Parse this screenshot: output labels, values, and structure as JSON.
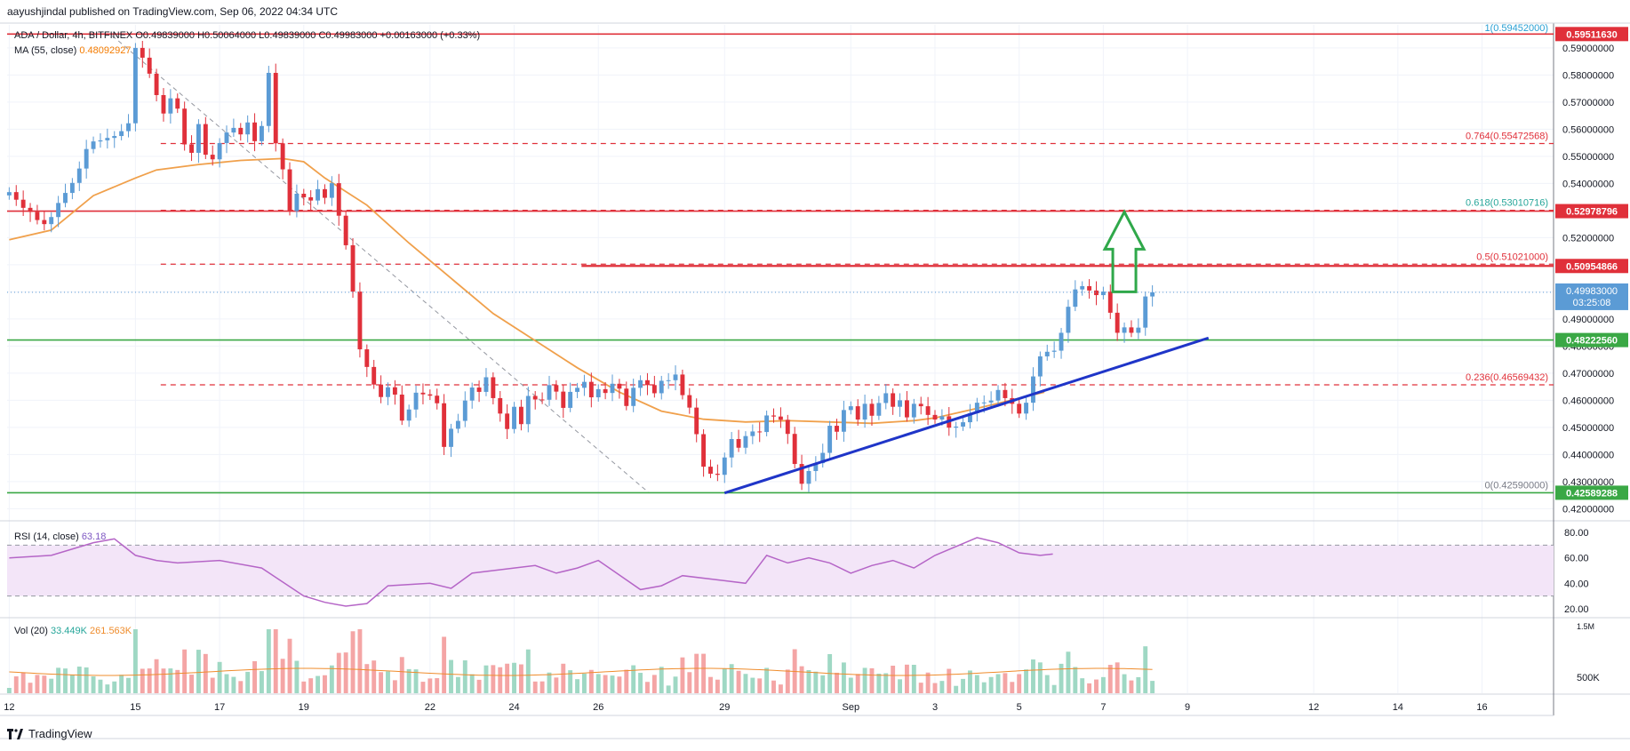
{
  "header": {
    "published_by": "aayushjindal published on TradingView.com, Sep 06, 2022 04:34 UTC"
  },
  "brand": {
    "name": "TradingView",
    "icon": "tradingview-logo-icon"
  },
  "legend": {
    "symbol": "ADA / Dollar, 4h, BITFINEX",
    "ohlc": "O0.49839000 H0.50064000 L0.49839000 C0.49983000 +0.00163000 (+0.33%)",
    "ma_label": "MA (55, close)",
    "ma_value": "0.48092927",
    "rsi_label": "RSI (14, close)",
    "rsi_value": "63.18",
    "vol_label": "Vol (20)",
    "vol_value": "33.449K",
    "vol_ma_value": "261.563K"
  },
  "colors": {
    "up": "#5b9bd5",
    "down": "#e0303a",
    "ma": "#f0a04b",
    "support": "#3aa845",
    "resistance": "#e0303a",
    "trendline": "#1f35c8",
    "arrow": "#2fa84a",
    "rsi": "#b565c7",
    "rsi_band": "#f3e5f8"
  },
  "chart_data": {
    "type": "candlestick",
    "price_axis": {
      "currency": "USD",
      "ticks": [
        "0.59000000",
        "0.58000000",
        "0.57000000",
        "0.56000000",
        "0.55000000",
        "0.54000000",
        "0.53000000",
        "0.52000000",
        "0.51000000",
        "0.50000000",
        "0.49000000",
        "0.48000000",
        "0.47000000",
        "0.46000000",
        "0.45000000",
        "0.44000000",
        "0.43000000",
        "0.42000000"
      ],
      "range": [
        0.4175,
        0.5985
      ],
      "last_price": "0.49983000",
      "countdown": "03:25:08"
    },
    "time_axis": {
      "labels": [
        {
          "t": 0,
          "label": "12"
        },
        {
          "t": 3,
          "label": "15"
        },
        {
          "t": 5,
          "label": "17"
        },
        {
          "t": 7,
          "label": "19"
        },
        {
          "t": 10,
          "label": "22"
        },
        {
          "t": 12,
          "label": "24"
        },
        {
          "t": 14,
          "label": "26"
        },
        {
          "t": 17,
          "label": "29"
        },
        {
          "t": 20,
          "label": "Sep"
        },
        {
          "t": 22,
          "label": "3"
        },
        {
          "t": 24,
          "label": "5"
        },
        {
          "t": 26,
          "label": "7"
        },
        {
          "t": 28,
          "label": "9"
        },
        {
          "t": 31,
          "label": "12"
        },
        {
          "t": 33,
          "label": "14"
        },
        {
          "t": 35,
          "label": "16"
        }
      ],
      "range_days": [
        -0.05,
        36.7
      ]
    },
    "fibonacci": [
      {
        "level": "1",
        "price": 0.59452,
        "label": "1(0.59452000)"
      },
      {
        "level": "0.764",
        "price": 0.55472568,
        "label": "0.764(0.55472568)"
      },
      {
        "level": "0.618",
        "price": 0.53010716,
        "label": "0.618(0.53010716)"
      },
      {
        "level": "0.5",
        "price": 0.51021,
        "label": "0.5(0.51021000)"
      },
      {
        "level": "0.236",
        "price": 0.46569432,
        "label": "0.236(0.46569432)"
      },
      {
        "level": "0",
        "price": 0.4259,
        "label": "0(0.42590000)"
      }
    ],
    "horizontal_lines": [
      {
        "price": 0.5951163,
        "label": "0.59511630",
        "role": "resistance"
      },
      {
        "price": 0.52978796,
        "label": "0.52978796",
        "role": "resistance"
      },
      {
        "price": 0.50954866,
        "label": "0.50954866",
        "role": "resistance"
      },
      {
        "price": 0.4822256,
        "label": "0.48222560",
        "role": "support"
      },
      {
        "price": 0.42589288,
        "label": "0.42589288",
        "role": "support"
      }
    ],
    "trendline": {
      "from": {
        "t": 17.0,
        "price": 0.4258
      },
      "to": {
        "t": 28.5,
        "price": 0.483
      }
    },
    "fib_diagonal": {
      "from": {
        "t": 2.45,
        "price": 0.5945
      },
      "to": {
        "t": 15.2,
        "price": 0.4259
      }
    },
    "arrow": {
      "t": 26.5,
      "from_price": 0.5,
      "to_price": 0.5295
    },
    "closes": [
      0.5368,
      0.534,
      0.531,
      0.5295,
      0.5265,
      0.525,
      0.5276,
      0.5328,
      0.5365,
      0.5402,
      0.5455,
      0.5527,
      0.5555,
      0.5559,
      0.5568,
      0.5575,
      0.5593,
      0.5622,
      0.59,
      0.5864,
      0.5805,
      0.5726,
      0.5658,
      0.5714,
      0.5676,
      0.5544,
      0.5513,
      0.5619,
      0.5506,
      0.5489,
      0.5549,
      0.5588,
      0.5605,
      0.5581,
      0.5625,
      0.5556,
      0.5612,
      0.5808,
      0.5548,
      0.5452,
      0.5298,
      0.5362,
      0.5349,
      0.5337,
      0.5379,
      0.5347,
      0.5401,
      0.5281,
      0.5172,
      0.5001,
      0.4788,
      0.4723,
      0.4658,
      0.4612,
      0.4648,
      0.4621,
      0.4525,
      0.4566,
      0.4628,
      0.4622,
      0.4617,
      0.4589,
      0.4428,
      0.4495,
      0.4524,
      0.4599,
      0.4647,
      0.4631,
      0.4685,
      0.4608,
      0.4551,
      0.4494,
      0.4576,
      0.4512,
      0.4616,
      0.4603,
      0.4602,
      0.4656,
      0.4632,
      0.4572,
      0.4631,
      0.4646,
      0.4668,
      0.4611,
      0.4641,
      0.4627,
      0.4661,
      0.4643,
      0.4579,
      0.4646,
      0.4674,
      0.4656,
      0.4626,
      0.4672,
      0.4674,
      0.4695,
      0.4619,
      0.4573,
      0.4475,
      0.4355,
      0.4329,
      0.4325,
      0.4389,
      0.4457,
      0.4425,
      0.4468,
      0.4485,
      0.4483,
      0.4544,
      0.454,
      0.4528,
      0.4476,
      0.4365,
      0.4292,
      0.4339,
      0.4368,
      0.4406,
      0.4506,
      0.4484,
      0.4564,
      0.4578,
      0.4529,
      0.4587,
      0.4543,
      0.459,
      0.4626,
      0.4576,
      0.46,
      0.4537,
      0.4587,
      0.4578,
      0.4546,
      0.4529,
      0.4541,
      0.4499,
      0.4503,
      0.4519,
      0.4552,
      0.4591,
      0.4592,
      0.4599,
      0.4638,
      0.4608,
      0.4587,
      0.4551,
      0.4591,
      0.4688,
      0.4762,
      0.4779,
      0.4783,
      0.4849,
      0.4945,
      0.5009,
      0.5021,
      0.5005,
      0.4988,
      0.5001,
      0.4923,
      0.4849,
      0.4869,
      0.4849,
      0.4868,
      0.4983,
      0.49983
    ],
    "moving_average": [
      [
        0.0,
        0.5192
      ],
      [
        1.0,
        0.5228
      ],
      [
        2.0,
        0.5355
      ],
      [
        3.0,
        0.542
      ],
      [
        3.5,
        0.545
      ],
      [
        4.5,
        0.547
      ],
      [
        5.5,
        0.5485
      ],
      [
        6.5,
        0.5492
      ],
      [
        7.0,
        0.548
      ],
      [
        7.5,
        0.542
      ],
      [
        8.5,
        0.532
      ],
      [
        9.5,
        0.518
      ],
      [
        10.5,
        0.505
      ],
      [
        11.5,
        0.492
      ],
      [
        12.5,
        0.482
      ],
      [
        13.5,
        0.472
      ],
      [
        14.5,
        0.463
      ],
      [
        15.5,
        0.456
      ],
      [
        16.5,
        0.453
      ],
      [
        17.5,
        0.452
      ],
      [
        18.5,
        0.4525
      ],
      [
        19.5,
        0.452
      ],
      [
        20.5,
        0.4515
      ],
      [
        21.5,
        0.4525
      ],
      [
        22.0,
        0.4535
      ],
      [
        23.0,
        0.457
      ],
      [
        23.8,
        0.46
      ],
      [
        24.6,
        0.463
      ]
    ],
    "rsi": {
      "ticks": [
        "80.00",
        "60.00",
        "40.00",
        "20.00"
      ],
      "bands": [
        30,
        70
      ],
      "points": [
        [
          0,
          60
        ],
        [
          1,
          62
        ],
        [
          2,
          72
        ],
        [
          2.5,
          75
        ],
        [
          3,
          62
        ],
        [
          3.5,
          58
        ],
        [
          4,
          56
        ],
        [
          5,
          58
        ],
        [
          6,
          52
        ],
        [
          7,
          30
        ],
        [
          7.5,
          25
        ],
        [
          8,
          22
        ],
        [
          8.5,
          24
        ],
        [
          9,
          38
        ],
        [
          10,
          40
        ],
        [
          10.5,
          36
        ],
        [
          11,
          48
        ],
        [
          12,
          52
        ],
        [
          12.5,
          54
        ],
        [
          13,
          48
        ],
        [
          13.5,
          52
        ],
        [
          14,
          58
        ],
        [
          15,
          35
        ],
        [
          15.5,
          38
        ],
        [
          16,
          46
        ],
        [
          17,
          42
        ],
        [
          17.5,
          40
        ],
        [
          18,
          62
        ],
        [
          18.5,
          56
        ],
        [
          19,
          60
        ],
        [
          19.5,
          56
        ],
        [
          20,
          48
        ],
        [
          20.5,
          54
        ],
        [
          21,
          58
        ],
        [
          21.5,
          52
        ],
        [
          22,
          62
        ],
        [
          23,
          76
        ],
        [
          23.5,
          72
        ],
        [
          24,
          64
        ],
        [
          24.5,
          62
        ],
        [
          24.8,
          63
        ]
      ]
    },
    "volume": {
      "axis_ticks": [
        "1.5M",
        "500K"
      ]
    }
  }
}
